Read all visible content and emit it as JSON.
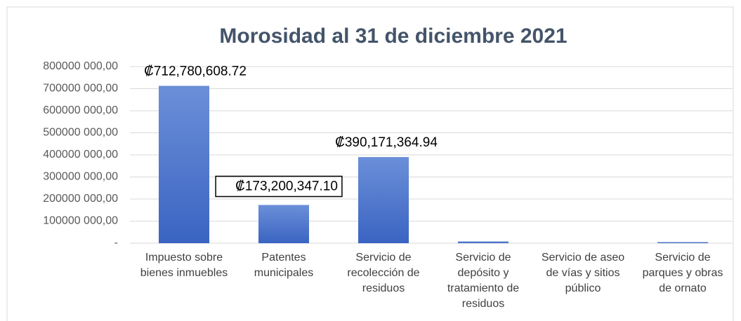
{
  "chart_data": {
    "type": "bar",
    "title": "Morosidad al 31 de diciembre 2021",
    "categories": [
      "Impuesto sobre bienes inmuebles",
      "Patentes municipales",
      "Servicio de recolección de residuos",
      "Servicio de depósito y tratamiento de residuos",
      "Servicio de aseo de vías y sitios público",
      "Servicio de parques y obras de ornato"
    ],
    "values": [
      712780608.72,
      173200347.1,
      390171364.94,
      8000000,
      0,
      5000000
    ],
    "value_labels": [
      "₡712,780,608.72",
      "₡173,200,347.10",
      "₡390,171,364.94",
      null,
      null,
      null
    ],
    "color": "#4472c4",
    "ylim": [
      0,
      800000000
    ],
    "yticks": [
      {
        "value": 0,
        "label": "-"
      },
      {
        "value": 100000000,
        "label": "100000 000,00"
      },
      {
        "value": 200000000,
        "label": "200000 000,00"
      },
      {
        "value": 300000000,
        "label": "300000 000,00"
      },
      {
        "value": 400000000,
        "label": "400000 000,00"
      },
      {
        "value": 500000000,
        "label": "500000 000,00"
      },
      {
        "value": 600000000,
        "label": "600000 000,00"
      },
      {
        "value": 700000000,
        "label": "700000 000,00"
      },
      {
        "value": 800000000,
        "label": "800000 000,00"
      }
    ],
    "grid": true
  }
}
